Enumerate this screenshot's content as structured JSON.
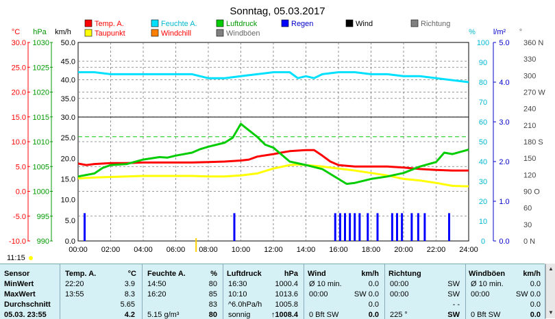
{
  "title": "Sonntag, 05.03.2017",
  "units": {
    "temp": "°C",
    "pressure": "hPa",
    "wind": "km/h",
    "humidity": "%",
    "rain": "l/m²",
    "direction": "°"
  },
  "legend": [
    {
      "label": "Temp. A.",
      "color": "#ff0000"
    },
    {
      "label": "Feuchte A.",
      "color": "#00e0ff"
    },
    {
      "label": "Luftdruck",
      "color": "#00cc00"
    },
    {
      "label": "Regen",
      "color": "#0000ff"
    },
    {
      "label": "Wind",
      "color": "#000000"
    },
    {
      "label": "Richtung",
      "color": "#808080"
    },
    {
      "label": "Taupunkt",
      "color": "#ffff00"
    },
    {
      "label": "Windchill",
      "color": "#ff8000"
    },
    {
      "label": "Windböen",
      "color": "#808080"
    }
  ],
  "time_label": "11:15",
  "chart_data": {
    "type": "line",
    "title": "Sonntag, 05.03.2017",
    "x_ticks": [
      "00:00",
      "02:00",
      "04:00",
      "06:00",
      "08:00",
      "10:00",
      "12:00",
      "14:00",
      "16:00",
      "18:00",
      "20:00",
      "22:00",
      "24:00"
    ],
    "axes": {
      "temp_C": {
        "ticks": [
          "30.0",
          "25.0",
          "20.0",
          "15.0",
          "10.0",
          "5.0",
          "0.0",
          "-5.0",
          "-10.0"
        ],
        "range": [
          -10,
          30
        ]
      },
      "pressure_hPa": {
        "ticks": [
          "1030",
          "1025",
          "1020",
          "1015",
          "1010",
          "1005",
          "1000",
          "995",
          "990"
        ],
        "range": [
          990,
          1030
        ]
      },
      "wind_kmh": {
        "ticks": [
          "50.0",
          "45.0",
          "40.0",
          "35.0",
          "30.0",
          "25.0",
          "20.0",
          "15.0",
          "10.0",
          "5.0",
          "0.0"
        ],
        "range": [
          0,
          50
        ]
      },
      "humidity_pct": {
        "ticks": [
          "100",
          "90",
          "80",
          "70",
          "60",
          "50",
          "40",
          "30",
          "20",
          "10",
          "0"
        ],
        "range": [
          0,
          100
        ]
      },
      "rain_lm2": {
        "ticks": [
          "5.0",
          "4.0",
          "3.0",
          "2.0",
          "1.0",
          "0.0"
        ],
        "range": [
          0,
          5
        ]
      },
      "direction_deg": {
        "ticks": [
          "360 N",
          "330",
          "300",
          "270 W",
          "240",
          "210",
          "180 S",
          "150",
          "120",
          "90 O",
          "60",
          "30",
          "0 N"
        ],
        "range": [
          0,
          360
        ]
      }
    },
    "series": [
      {
        "name": "Temp. A.",
        "axis": "temp",
        "color": "#ff0000",
        "x": [
          0,
          0.5,
          1,
          2,
          3,
          4,
          5,
          6,
          7,
          8,
          9,
          10,
          10.5,
          11,
          12,
          12.5,
          13,
          14,
          14.5,
          15,
          15.5,
          16,
          17,
          18,
          19,
          20,
          21,
          22,
          23,
          24
        ],
        "y": [
          5.6,
          5.3,
          5.5,
          5.7,
          5.7,
          5.8,
          5.8,
          5.8,
          5.8,
          5.9,
          6.0,
          6.2,
          6.4,
          7.0,
          7.5,
          7.8,
          8.1,
          8.3,
          8.3,
          7.2,
          6.0,
          5.3,
          5.0,
          5.0,
          5.0,
          4.8,
          4.5,
          4.3,
          4.2,
          4.2
        ]
      },
      {
        "name": "Taupunkt",
        "axis": "temp",
        "color": "#ffff00",
        "x": [
          0,
          1,
          2,
          3,
          4,
          5,
          6,
          7,
          8,
          9,
          10,
          11,
          12,
          13,
          13.5,
          14,
          15,
          16,
          17,
          18,
          19,
          20,
          21,
          22,
          23,
          24
        ],
        "y": [
          2.6,
          2.8,
          2.9,
          3.0,
          3.1,
          3.1,
          3.1,
          3.1,
          3.0,
          3.0,
          3.2,
          3.6,
          4.6,
          5.3,
          5.4,
          5.3,
          5.0,
          4.6,
          4.2,
          3.7,
          3.2,
          2.5,
          2.2,
          1.7,
          1.1,
          1.0
        ]
      },
      {
        "name": "Feuchte A.",
        "axis": "humidity",
        "color": "#00e0ff",
        "x": [
          0,
          1,
          2,
          3,
          4,
          5,
          6,
          7,
          8,
          9,
          10,
          11,
          12,
          13,
          13.5,
          14,
          14.5,
          15,
          16,
          17,
          18,
          19,
          20,
          21,
          22,
          23,
          24
        ],
        "y": [
          85,
          85,
          84,
          84,
          84,
          84,
          84,
          84,
          82,
          82,
          83,
          84,
          85,
          85,
          82,
          83,
          82,
          84,
          85,
          85,
          84,
          84,
          83,
          83,
          82,
          81,
          80
        ]
      },
      {
        "name": "Luftdruck",
        "axis": "pressure",
        "color": "#00cc00",
        "x": [
          0,
          1,
          1.5,
          2,
          3,
          4,
          5,
          5.5,
          6,
          7,
          7.5,
          8,
          9,
          9.5,
          10,
          10.3,
          11,
          11.5,
          12,
          12.5,
          13,
          14,
          15,
          15.5,
          16,
          16.5,
          17,
          18,
          19,
          20,
          21,
          22,
          22.5,
          23,
          24
        ],
        "y": [
          1003,
          1003.6,
          1004.7,
          1005.3,
          1005.5,
          1006.4,
          1006.9,
          1006.8,
          1007.2,
          1007.8,
          1008.5,
          1009.0,
          1009.8,
          1010.8,
          1013.6,
          1012.8,
          1011.0,
          1009.4,
          1008.8,
          1007.4,
          1006.0,
          1005.3,
          1004.5,
          1003.5,
          1002.5,
          1001.5,
          1001.7,
          1002.5,
          1003.0,
          1003.7,
          1005.0,
          1005.9,
          1007.8,
          1007.5,
          1008.4
        ]
      }
    ],
    "rain_bars": [
      {
        "time": 0.4,
        "value": 0.7
      },
      {
        "time": 9.6,
        "value": 0.7
      },
      {
        "time": 15.8,
        "value": 0.7
      },
      {
        "time": 16.1,
        "value": 0.7
      },
      {
        "time": 16.4,
        "value": 0.7
      },
      {
        "time": 16.7,
        "value": 0.7
      },
      {
        "time": 17.0,
        "value": 0.7
      },
      {
        "time": 17.3,
        "value": 0.7
      },
      {
        "time": 17.8,
        "value": 0.7
      },
      {
        "time": 18.4,
        "value": 0.7
      },
      {
        "time": 19.3,
        "value": 0.7
      },
      {
        "time": 19.6,
        "value": 0.7
      },
      {
        "time": 19.9,
        "value": 0.7
      },
      {
        "time": 20.5,
        "value": 0.7
      },
      {
        "time": 20.9,
        "value": 0.7
      },
      {
        "time": 21.3,
        "value": 0.7
      },
      {
        "time": 22.8,
        "value": 0.7
      }
    ],
    "reference_line": {
      "temp": 11.0,
      "color": "#00cc00"
    },
    "grid": true
  },
  "table": {
    "headers": [
      "Sensor",
      "Temp. A.",
      "°C",
      "Feuchte A.",
      "%",
      "Luftdruck",
      "hPa",
      "Wind",
      "km/h",
      "Richtung",
      "Windböen",
      "km/h"
    ],
    "rows": [
      {
        "label": "MinWert",
        "cells": [
          "22:20",
          "3.9",
          "14:50",
          "80",
          "16:30",
          "1000.4",
          "Ø 10 min.",
          "0.0",
          "00:00",
          "SW",
          "Ø 10 min.",
          "0.0"
        ]
      },
      {
        "label": "MaxWert",
        "cells": [
          "13:55",
          "8.3",
          "16:20",
          "85",
          "10:10",
          "1013.6",
          "00:00",
          "SW 0.0",
          "00:00",
          "SW",
          "00:00",
          "SW 0.0"
        ]
      },
      {
        "label": "Durchschnitt",
        "cells": [
          "",
          "5.65",
          "",
          "83",
          "^6.0hPa/h",
          "1005.8",
          "",
          "0.0",
          "",
          "- -",
          "",
          "0.0"
        ]
      },
      {
        "label": "05.03. 23:55",
        "cells": [
          "",
          "4.2",
          "5.15 g/m³",
          "80",
          "sonnig",
          "↑1008.4",
          "0 Bft SW",
          "0.0",
          "225 °",
          "SW",
          "0 Bft SW",
          "0.0"
        ]
      }
    ]
  }
}
